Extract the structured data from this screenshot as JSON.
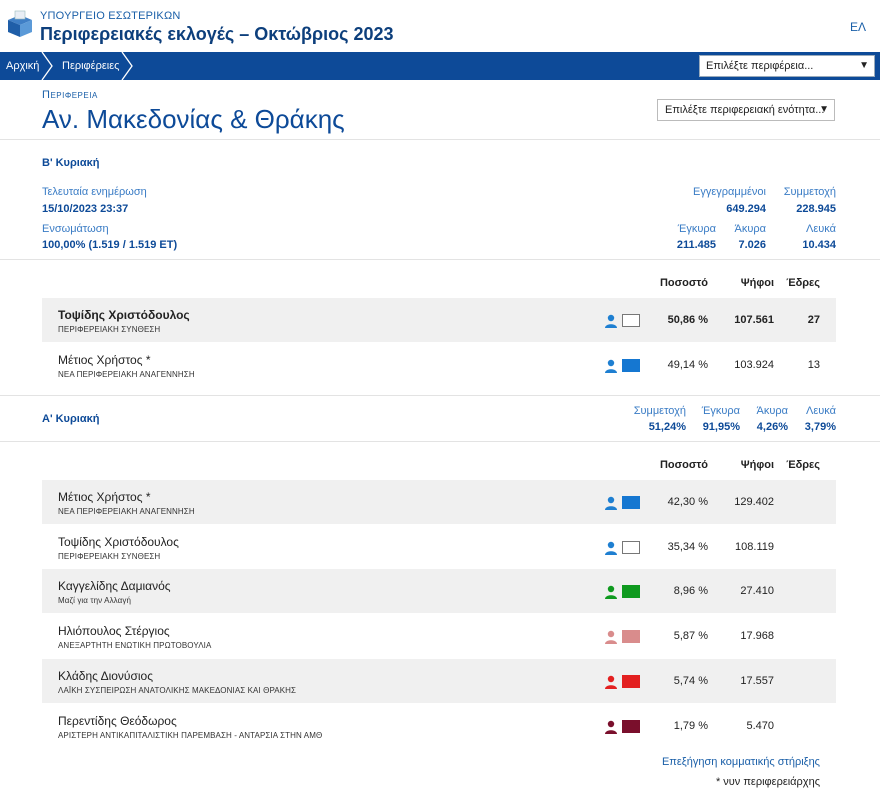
{
  "header": {
    "ministry": "ΥΠΟΥΡΓΕΙΟ ΕΣΩΤΕΡΙΚΩΝ",
    "title": "Περιφερειακές εκλογές – Οκτώβριος 2023",
    "lang": "ΕΛ"
  },
  "nav": {
    "home": "Αρχική",
    "regions": "Περιφέρειες",
    "region_select": "Επιλέξτε περιφέρεια..."
  },
  "region": {
    "label": "Περιφερεια",
    "name": "Αν. Μακεδονίας & Θράκης",
    "unit_select": "Επιλέξτε περιφερειακή ενότητα..."
  },
  "round_b": {
    "title": "Β' Κυριακή",
    "last_update_label": "Τελευταία ενημέρωση",
    "last_update_value": "15/10/2023 23:37",
    "integration_label": "Ενσωμάτωση",
    "integration_value": "100,00% (1.519 / 1.519 ΕΤ)",
    "registered_label": "Εγγεγραμμένοι",
    "registered_value": "649.294",
    "turnout_label": "Συμμετοχή",
    "turnout_value": "228.945",
    "valid_label": "Έγκυρα",
    "valid_value": "211.485",
    "invalid_label": "Άκυρα",
    "invalid_value": "7.026",
    "blank_label": "Λευκά",
    "blank_value": "10.434"
  },
  "table_headers": {
    "percent": "Ποσοστό",
    "votes": "Ψήφοι",
    "seats": "Έδρες"
  },
  "round_b_rows": [
    {
      "candidate": "Τοψίδης Χριστόδουλος",
      "party": "ΠΕΡΙΦΕΡΕΙΑΚΗ ΣΥΝΘΕΣΗ",
      "percent": "50,86 %",
      "votes": "107.561",
      "seats": "27",
      "color": "#ffffff",
      "person_color": "#1e7fd1",
      "winner": true
    },
    {
      "candidate": "Μέτιος Χρήστος *",
      "party": "ΝΕΑ ΠΕΡΙΦΕΡΕΙΑΚΗ ΑΝΑΓΕΝΝΗΣΗ",
      "percent": "49,14 %",
      "votes": "103.924",
      "seats": "13",
      "color": "#1577d1",
      "person_color": "#1e7fd1",
      "winner": false
    }
  ],
  "round_a": {
    "title": "Α' Κυριακή",
    "turnout_label": "Συμμετοχή",
    "turnout_value": "51,24%",
    "valid_label": "Έγκυρα",
    "valid_value": "91,95%",
    "invalid_label": "Άκυρα",
    "invalid_value": "4,26%",
    "blank_label": "Λευκά",
    "blank_value": "3,79%"
  },
  "round_a_rows": [
    {
      "candidate": "Μέτιος Χρήστος *",
      "party": "ΝΕΑ ΠΕΡΙΦΕΡΕΙΑΚΗ ΑΝΑΓΕΝΝΗΣΗ",
      "percent": "42,30 %",
      "votes": "129.402",
      "seats": "",
      "color": "#1577d1",
      "person_color": "#1e7fd1"
    },
    {
      "candidate": "Τοψίδης Χριστόδουλος",
      "party": "ΠΕΡΙΦΕΡΕΙΑΚΗ ΣΥΝΘΕΣΗ",
      "percent": "35,34 %",
      "votes": "108.119",
      "seats": "",
      "color": "#ffffff",
      "person_color": "#1e7fd1"
    },
    {
      "candidate": "Καγγελίδης Δαμιανός",
      "party": "Μαζί για την Αλλαγή",
      "percent": "8,96 %",
      "votes": "27.410",
      "seats": "",
      "color": "#0f9a1f",
      "person_color": "#0f9a1f"
    },
    {
      "candidate": "Ηλιόπουλος Στέργιος",
      "party": "ΑΝΕΞΑΡΤΗΤΗ ΕΝΩΤΙΚΗ ΠΡΩΤΟΒΟΥΛΙΑ",
      "percent": "5,87 %",
      "votes": "17.968",
      "seats": "",
      "color": "#d98c8c",
      "person_color": "#d98c8c"
    },
    {
      "candidate": "Κλάδης Διονύσιος",
      "party": "ΛΑΪΚΗ ΣΥΣΠΕΙΡΩΣΗ ΑΝΑΤΟΛΙΚΗΣ ΜΑΚΕΔΟΝΙΑΣ ΚΑΙ ΘΡΑΚΗΣ",
      "percent": "5,74 %",
      "votes": "17.557",
      "seats": "",
      "color": "#e32020",
      "person_color": "#e32020"
    },
    {
      "candidate": "Περεντίδης Θεόδωρος",
      "party": "ΑΡΙΣΤΕΡΗ ΑΝΤΙΚΑΠΙΤΑΛΙΣΤΙΚΗ ΠΑΡΕΜΒΑΣΗ - ΑΝΤΑΡΣΙΑ ΣΤΗΝ ΑΜΘ",
      "percent": "1,79 %",
      "votes": "5.470",
      "seats": "",
      "color": "#7a0f2c",
      "person_color": "#7a0f2c"
    }
  ],
  "footer": {
    "link": "Επεξήγηση κομματικής στήριξης",
    "note": "* νυν περιφερειάρχης"
  }
}
